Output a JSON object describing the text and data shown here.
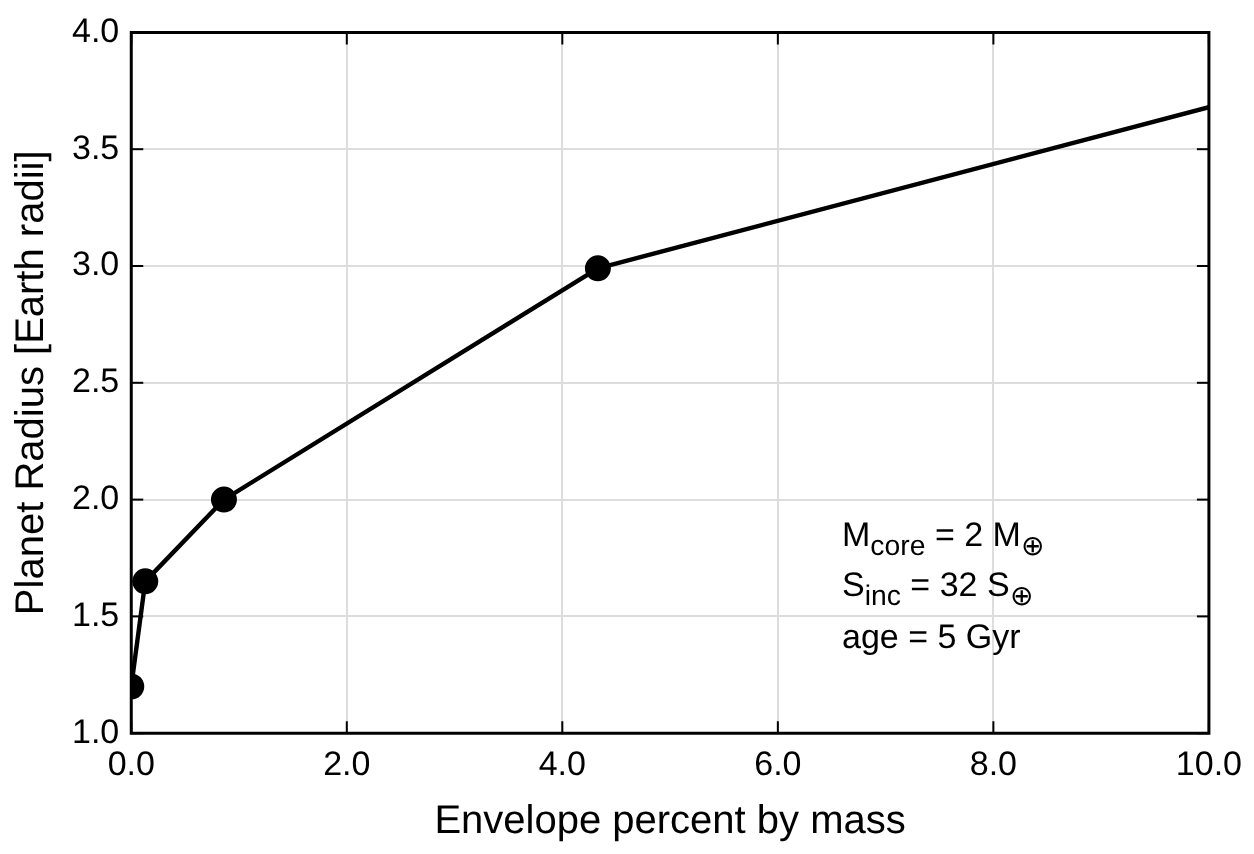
{
  "chart_data": {
    "type": "line",
    "xlabel": "Envelope percent by mass",
    "ylabel": "Planet Radius [Earth radii]",
    "annotations": [
      "M$_{core}$ =  2 M$_{⊕}$",
      "S$_{inc}$ =   32 S$_{⊕}$",
      "age =  5 Gyr"
    ],
    "series": [
      {
        "color": "#000000",
        "marker": "none",
        "x": [
          0,
          0.13,
          0.86,
          4.33,
          10
        ],
        "values": [
          1.2,
          1.65,
          2.0,
          2.99,
          3.68
        ]
      },
      {
        "type": "scatter",
        "color": "#000000",
        "marker": "circle",
        "x": [
          0,
          0.13,
          0.86,
          4.33
        ],
        "values": [
          1.2,
          1.65,
          2.0,
          2.99
        ]
      }
    ],
    "xlim": [
      0,
      10
    ],
    "xticks": [
      {
        "value": 0,
        "label": "0.0"
      },
      {
        "value": 2,
        "label": "2.0"
      },
      {
        "value": 4,
        "label": "4.0"
      },
      {
        "value": 6,
        "label": "6.0"
      },
      {
        "value": 8,
        "label": "8.0"
      },
      {
        "value": 10,
        "label": "10.0"
      }
    ],
    "ylim": [
      1,
      4
    ],
    "yticks": [
      {
        "value": 1,
        "label": "1.0"
      },
      {
        "value": 1.5,
        "label": "1.5"
      },
      {
        "value": 2,
        "label": "2.0"
      },
      {
        "value": 2.5,
        "label": "2.5"
      },
      {
        "value": 3,
        "label": "3.0"
      },
      {
        "value": 3.5,
        "label": "3.5"
      },
      {
        "value": 4,
        "label": "4.0"
      }
    ],
    "grid": true
  }
}
